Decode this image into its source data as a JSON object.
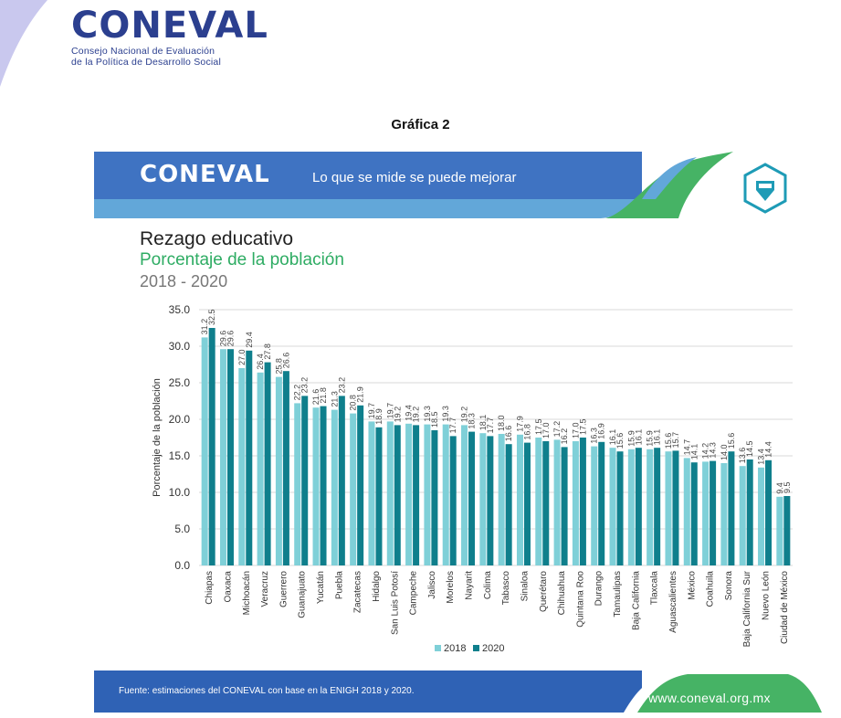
{
  "header": {
    "logo_word": "CONEVAL",
    "logo_line1": "Consejo Nacional de Evaluación",
    "logo_line2": "de la Política de Desarrollo Social",
    "figure_label": "Gráfica 2"
  },
  "banner": {
    "logo": "CONEVAL",
    "slogan": "Lo que se mide se puede mejorar",
    "icon": "pencil-shield-icon"
  },
  "colors": {
    "navy": "#2b3f8f",
    "blue_band": "#3f73c2",
    "light_blue_band": "#62a7d9",
    "green": "#46b365",
    "series_2018": "#7fd0d8",
    "series_2020": "#0f7f8c"
  },
  "chart_data": {
    "type": "bar",
    "title": "Rezago educativo",
    "subtitle": "Porcentaje de la población",
    "period": "2018 - 2020",
    "ylabel": "Porcentaje de la población",
    "xlabel": "",
    "ylim": [
      0,
      35
    ],
    "yticks": [
      "0.0",
      "5.0",
      "10.0",
      "15.0",
      "20.0",
      "25.0",
      "30.0",
      "35.0"
    ],
    "grid": true,
    "legend": "bottom",
    "categories": [
      "Chiapas",
      "Oaxaca",
      "Michoacán",
      "Veracruz",
      "Guerrero",
      "Guanajuato",
      "Yucatán",
      "Puebla",
      "Zacatecas",
      "Hidalgo",
      "San Luis Potosí",
      "Campeche",
      "Jalisco",
      "Morelos",
      "Nayarit",
      "Colima",
      "Tabasco",
      "Sinaloa",
      "Querétaro",
      "Chihuahua",
      "Quintana Roo",
      "Durango",
      "Tamaulipas",
      "Baja California",
      "Tlaxcala",
      "Aguascalientes",
      "México",
      "Coahuila",
      "Sonora",
      "Baja California Sur",
      "Nuevo León",
      "Ciudad de México"
    ],
    "series": [
      {
        "name": "2018",
        "values": [
          31.2,
          29.6,
          27.0,
          26.4,
          25.8,
          22.2,
          21.6,
          21.3,
          20.8,
          19.7,
          19.7,
          19.4,
          19.3,
          19.3,
          19.2,
          18.1,
          18.0,
          17.9,
          17.5,
          17.2,
          17.0,
          16.3,
          16.1,
          15.9,
          15.9,
          15.6,
          14.7,
          14.2,
          14.0,
          13.6,
          13.4,
          9.4
        ]
      },
      {
        "name": "2020",
        "values": [
          32.5,
          29.6,
          29.4,
          27.8,
          26.6,
          23.2,
          21.8,
          23.2,
          21.9,
          18.9,
          19.2,
          19.2,
          18.5,
          17.7,
          18.3,
          17.7,
          16.6,
          16.8,
          17.0,
          16.2,
          17.5,
          16.9,
          15.6,
          16.1,
          16.1,
          15.7,
          14.1,
          14.3,
          15.6,
          14.5,
          14.4,
          9.5
        ]
      }
    ]
  },
  "footer": {
    "source": "Fuente: estimaciones del CONEVAL con base en la ENIGH 2018 y 2020.",
    "url": "www.coneval.org.mx"
  }
}
